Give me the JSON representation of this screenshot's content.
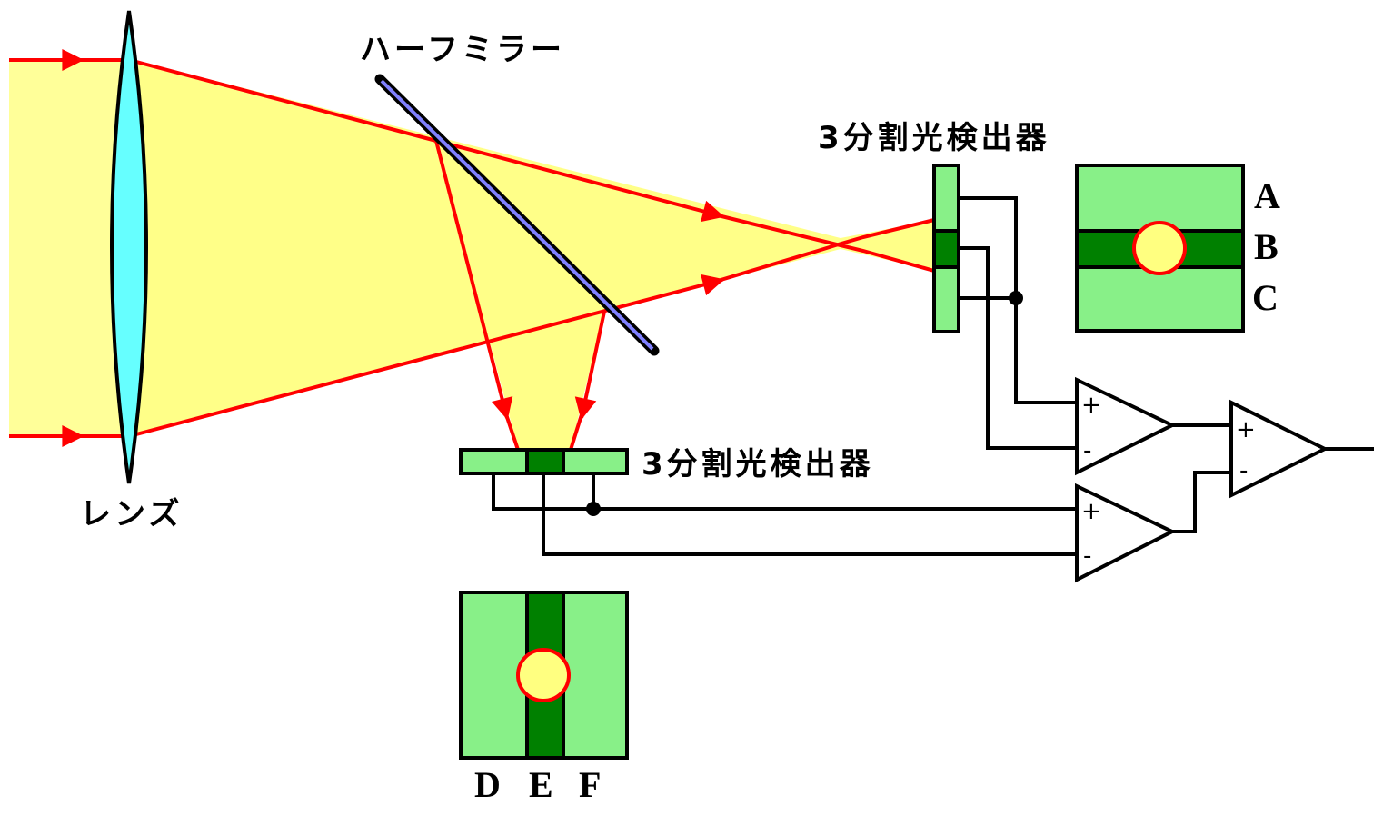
{
  "labels": {
    "lens": "レンズ",
    "half_mirror": "ハーフミラー",
    "detector_right": "3分割光検出器",
    "detector_bottom": "3分割光検出器",
    "segments_right": [
      "A",
      "B",
      "C"
    ],
    "segments_bottom": [
      "D",
      "E",
      "F"
    ],
    "opamp_plus": "+",
    "opamp_minus": "-"
  },
  "colors": {
    "beam": "#ffff88",
    "ray": "#ff0000",
    "lens": "#66ffff",
    "mirror": "#8080ff",
    "segment_light": "#88f088",
    "segment_dark": "#008000",
    "spot": "#ffff80"
  }
}
